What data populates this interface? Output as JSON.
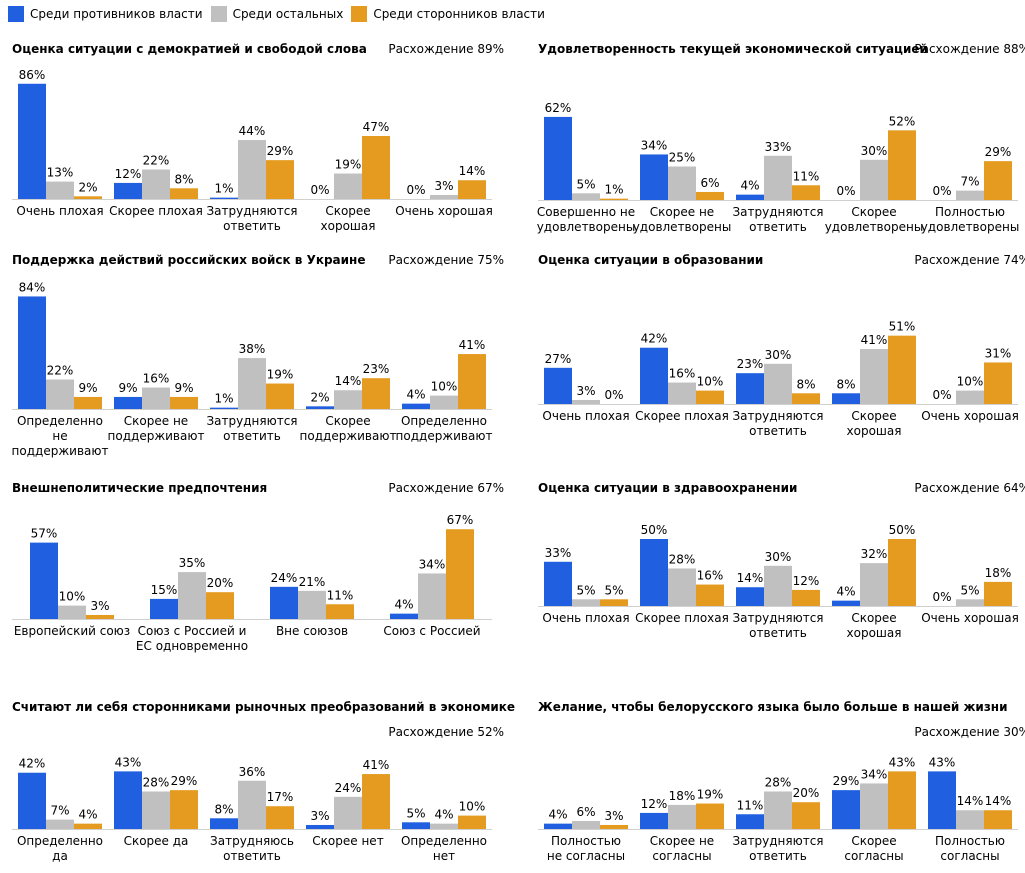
{
  "legend": {
    "items": [
      {
        "label": "Среди противников власти",
        "color": "#2060E0"
      },
      {
        "label": "Среди остальных",
        "color": "#C0C0C0"
      },
      {
        "label": "Среди сторонников власти",
        "color": "#E49B20"
      }
    ]
  },
  "chart_data": [
    {
      "type": "bar",
      "title": "Оценка ситуации с демократией и свободой слова",
      "subtitle": "Расхождение 89%",
      "categories": [
        [
          "Очень плохая"
        ],
        [
          "Скорее плохая"
        ],
        [
          "Затрудняются",
          "ответить"
        ],
        [
          "Скорее",
          "хорошая"
        ],
        [
          "Очень хорошая"
        ]
      ],
      "series": [
        {
          "name": "Среди противников власти",
          "values": [
            86,
            12,
            1,
            0,
            0
          ]
        },
        {
          "name": "Среди остальных",
          "values": [
            13,
            22,
            44,
            19,
            3
          ]
        },
        {
          "name": "Среди сторонников власти",
          "values": [
            2,
            8,
            29,
            47,
            14
          ]
        }
      ]
    },
    {
      "type": "bar",
      "title": "Удовлетворенность текущей экономической ситуацией",
      "subtitle": "Расхождение 88%",
      "categories": [
        [
          "Совершенно не",
          "удовлетворены"
        ],
        [
          "Скорее не",
          "удовлетворены"
        ],
        [
          "Затрудняются",
          "ответить"
        ],
        [
          "Скорее",
          "удовлетворены"
        ],
        [
          "Полностью",
          "удовлетворены"
        ]
      ],
      "series": [
        {
          "name": "Среди противников власти",
          "values": [
            62,
            34,
            4,
            0,
            0
          ]
        },
        {
          "name": "Среди остальных",
          "values": [
            5,
            25,
            33,
            30,
            7
          ]
        },
        {
          "name": "Среди сторонников власти",
          "values": [
            1,
            6,
            11,
            52,
            29
          ]
        }
      ]
    },
    {
      "type": "bar",
      "title": "Поддержка действий российских войск в Украине",
      "subtitle": "Расхождение 75%",
      "categories": [
        [
          "Определенно",
          "не",
          "поддерживают"
        ],
        [
          "Скорее не",
          "поддерживают"
        ],
        [
          "Затрудняются",
          "ответить"
        ],
        [
          "Скорее",
          "поддерживают"
        ],
        [
          "Определенно",
          "поддерживают"
        ]
      ],
      "series": [
        {
          "name": "Среди противников власти",
          "values": [
            84,
            9,
            1,
            2,
            4
          ]
        },
        {
          "name": "Среди остальных",
          "values": [
            22,
            16,
            38,
            14,
            10
          ]
        },
        {
          "name": "Среди сторонников власти",
          "values": [
            9,
            9,
            19,
            23,
            41
          ]
        }
      ]
    },
    {
      "type": "bar",
      "title": "Оценка ситуации в образовании",
      "subtitle": "Расхождение 74%",
      "categories": [
        [
          "Очень плохая"
        ],
        [
          "Скорее плохая"
        ],
        [
          "Затрудняются",
          "ответить"
        ],
        [
          "Скорее",
          "хорошая"
        ],
        [
          "Очень хорошая"
        ]
      ],
      "series": [
        {
          "name": "Среди противников власти",
          "values": [
            27,
            42,
            23,
            8,
            0
          ]
        },
        {
          "name": "Среди остальных",
          "values": [
            3,
            16,
            30,
            41,
            10
          ]
        },
        {
          "name": "Среди сторонников власти",
          "values": [
            0,
            10,
            8,
            51,
            31
          ]
        }
      ]
    },
    {
      "type": "bar",
      "title": "Внешнеполитические предпочтения",
      "subtitle": "Расхождение 67%",
      "categories": [
        [
          "Европейский союз"
        ],
        [
          "Союз с Россией и",
          "ЕС одновременно"
        ],
        [
          "Вне союзов"
        ],
        [
          "Союз с Россией"
        ]
      ],
      "series": [
        {
          "name": "Среди противников власти",
          "values": [
            57,
            15,
            24,
            4
          ]
        },
        {
          "name": "Среди остальных",
          "values": [
            10,
            35,
            21,
            34
          ]
        },
        {
          "name": "Среди сторонников власти",
          "values": [
            3,
            20,
            11,
            67
          ]
        }
      ]
    },
    {
      "type": "bar",
      "title": "Оценка ситуации в здравоохранении",
      "subtitle": "Расхождение 64%",
      "categories": [
        [
          "Очень плохая"
        ],
        [
          "Скорее плохая"
        ],
        [
          "Затрудняются",
          "ответить"
        ],
        [
          "Скорее",
          "хорошая"
        ],
        [
          "Очень хорошая"
        ]
      ],
      "series": [
        {
          "name": "Среди противников власти",
          "values": [
            33,
            50,
            14,
            4,
            0
          ]
        },
        {
          "name": "Среди остальных",
          "values": [
            5,
            28,
            30,
            32,
            5
          ]
        },
        {
          "name": "Среди сторонников власти",
          "values": [
            5,
            16,
            12,
            50,
            18
          ]
        }
      ]
    },
    {
      "type": "bar",
      "title": "Считают ли себя сторонниками рыночных преобразований в экономике",
      "subtitle": "Расхождение 52%",
      "categories": [
        [
          "Определенно",
          "да"
        ],
        [
          "Скорее да"
        ],
        [
          "Затрудняюсь",
          "ответить"
        ],
        [
          "Скорее нет"
        ],
        [
          "Определенно",
          "нет"
        ]
      ],
      "series": [
        {
          "name": "Среди противников власти",
          "values": [
            42,
            43,
            8,
            3,
            5
          ]
        },
        {
          "name": "Среди остальных",
          "values": [
            7,
            28,
            36,
            24,
            4
          ]
        },
        {
          "name": "Среди сторонников власти",
          "values": [
            4,
            29,
            17,
            41,
            10
          ]
        }
      ]
    },
    {
      "type": "bar",
      "title": "Желание, чтобы белорусского языка было больше в нашей жизни",
      "subtitle": "Расхождение 30%",
      "categories": [
        [
          "Полностью",
          "не согласны"
        ],
        [
          "Скорее не",
          "согласны"
        ],
        [
          "Затрудняются",
          "ответить"
        ],
        [
          "Скорее",
          "согласны"
        ],
        [
          "Полностью",
          "согласны"
        ]
      ],
      "series": [
        {
          "name": "Среди противников власти",
          "values": [
            4,
            12,
            11,
            29,
            43
          ]
        },
        {
          "name": "Среди остальных",
          "values": [
            6,
            18,
            28,
            34,
            14
          ]
        },
        {
          "name": "Среди сторонников власти",
          "values": [
            3,
            19,
            20,
            43,
            14
          ]
        }
      ]
    }
  ]
}
